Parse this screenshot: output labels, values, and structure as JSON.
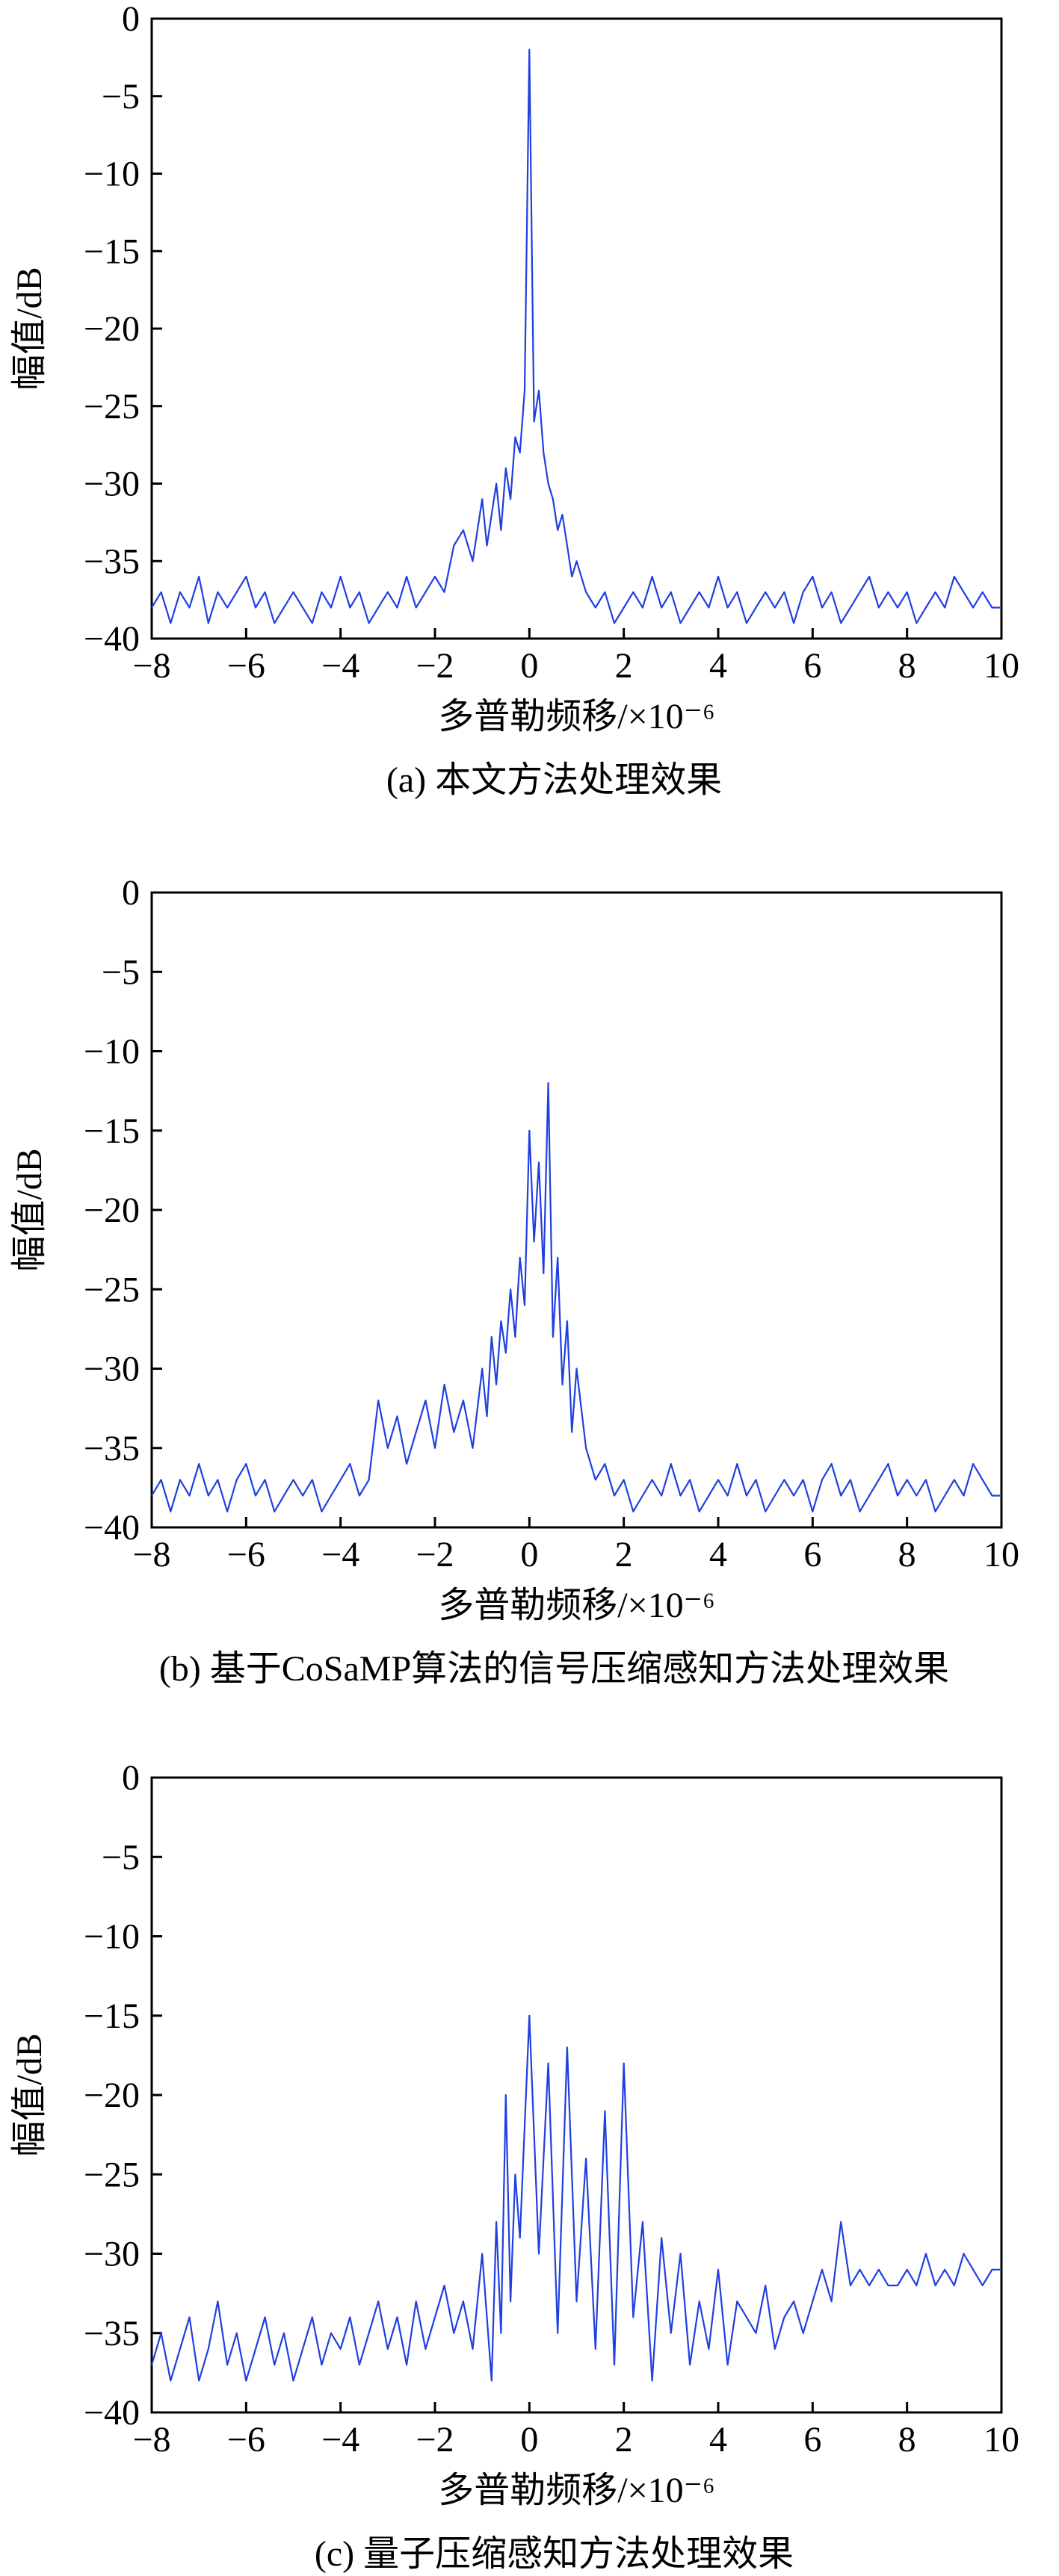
{
  "chart_data": [
    {
      "type": "line",
      "caption": "(a) 本文方法处理效果",
      "xlabel": "多普勒频移/×10⁻⁶",
      "ylabel": "幅值/dB",
      "xlim": [
        -8,
        10
      ],
      "ylim": [
        -40,
        0
      ],
      "xticks": [
        "−8",
        "−6",
        "−4",
        "−2",
        "0",
        "2",
        "4",
        "6",
        "8",
        "10"
      ],
      "yticks": [
        "0",
        "−5",
        "−10",
        "−15",
        "−20",
        "−25",
        "−30",
        "−35",
        "−40"
      ],
      "line_color": "#1f3fe0",
      "series": [
        {
          "x": [
            -8.0,
            -7.8,
            -7.6,
            -7.4,
            -7.2,
            -7.0,
            -6.8,
            -6.6,
            -6.4,
            -6.2,
            -6.0,
            -5.8,
            -5.6,
            -5.4,
            -5.2,
            -5.0,
            -4.8,
            -4.6,
            -4.4,
            -4.2,
            -4.0,
            -3.8,
            -3.6,
            -3.4,
            -3.2,
            -3.0,
            -2.8,
            -2.6,
            -2.4,
            -2.2,
            -2.0,
            -1.8,
            -1.6,
            -1.4,
            -1.2,
            -1.0,
            -0.9,
            -0.8,
            -0.7,
            -0.6,
            -0.5,
            -0.4,
            -0.3,
            -0.2,
            -0.1,
            0.0,
            0.1,
            0.2,
            0.3,
            0.4,
            0.5,
            0.6,
            0.7,
            0.8,
            0.9,
            1.0,
            1.2,
            1.4,
            1.6,
            1.8,
            2.0,
            2.2,
            2.4,
            2.6,
            2.8,
            3.0,
            3.2,
            3.4,
            3.6,
            3.8,
            4.0,
            4.2,
            4.4,
            4.6,
            4.8,
            5.0,
            5.2,
            5.4,
            5.6,
            5.8,
            6.0,
            6.2,
            6.4,
            6.6,
            6.8,
            7.0,
            7.2,
            7.4,
            7.6,
            7.8,
            8.0,
            8.2,
            8.4,
            8.6,
            8.8,
            9.0,
            9.2,
            9.4,
            9.6,
            9.8,
            10.0
          ],
          "y": [
            -38,
            -37,
            -39,
            -37,
            -38,
            -36,
            -39,
            -37,
            -38,
            -37,
            -36,
            -38,
            -37,
            -39,
            -38,
            -37,
            -38,
            -39,
            -37,
            -38,
            -36,
            -38,
            -37,
            -39,
            -38,
            -37,
            -38,
            -36,
            -38,
            -37,
            -36,
            -37,
            -34,
            -33,
            -35,
            -31,
            -34,
            -32,
            -30,
            -33,
            -29,
            -31,
            -27,
            -28,
            -24,
            -2,
            -26,
            -24,
            -28,
            -30,
            -31,
            -33,
            -32,
            -34,
            -36,
            -35,
            -37,
            -38,
            -37,
            -39,
            -38,
            -37,
            -38,
            -36,
            -38,
            -37,
            -39,
            -38,
            -37,
            -38,
            -36,
            -38,
            -37,
            -39,
            -38,
            -37,
            -38,
            -37,
            -39,
            -37,
            -36,
            -38,
            -37,
            -39,
            -38,
            -37,
            -36,
            -38,
            -37,
            -38,
            -37,
            -39,
            -38,
            -37,
            -38,
            -36,
            -37,
            -38,
            -37,
            -38,
            -38
          ]
        }
      ]
    },
    {
      "type": "line",
      "caption": "(b) 基于CoSaMP算法的信号压缩感知方法处理效果",
      "xlabel": "多普勒频移/×10⁻⁶",
      "ylabel": "幅值/dB",
      "xlim": [
        -8,
        10
      ],
      "ylim": [
        -40,
        0
      ],
      "xticks": [
        "−8",
        "−6",
        "−4",
        "−2",
        "0",
        "2",
        "4",
        "6",
        "8",
        "10"
      ],
      "yticks": [
        "0",
        "−5",
        "−10",
        "−15",
        "−20",
        "−25",
        "−30",
        "−35",
        "−40"
      ],
      "line_color": "#1f3fe0",
      "series": [
        {
          "x": [
            -8.0,
            -7.8,
            -7.6,
            -7.4,
            -7.2,
            -7.0,
            -6.8,
            -6.6,
            -6.4,
            -6.2,
            -6.0,
            -5.8,
            -5.6,
            -5.4,
            -5.2,
            -5.0,
            -4.8,
            -4.6,
            -4.4,
            -4.2,
            -4.0,
            -3.8,
            -3.6,
            -3.4,
            -3.2,
            -3.0,
            -2.8,
            -2.6,
            -2.4,
            -2.2,
            -2.0,
            -1.8,
            -1.6,
            -1.4,
            -1.2,
            -1.0,
            -0.9,
            -0.8,
            -0.7,
            -0.6,
            -0.5,
            -0.4,
            -0.3,
            -0.2,
            -0.1,
            0.0,
            0.1,
            0.2,
            0.3,
            0.4,
            0.5,
            0.6,
            0.7,
            0.8,
            0.9,
            1.0,
            1.2,
            1.4,
            1.6,
            1.8,
            2.0,
            2.2,
            2.4,
            2.6,
            2.8,
            3.0,
            3.2,
            3.4,
            3.6,
            3.8,
            4.0,
            4.2,
            4.4,
            4.6,
            4.8,
            5.0,
            5.2,
            5.4,
            5.6,
            5.8,
            6.0,
            6.2,
            6.4,
            6.6,
            6.8,
            7.0,
            7.2,
            7.4,
            7.6,
            7.8,
            8.0,
            8.2,
            8.4,
            8.6,
            8.8,
            9.0,
            9.2,
            9.4,
            9.6,
            9.8,
            10.0
          ],
          "y": [
            -38,
            -37,
            -39,
            -37,
            -38,
            -36,
            -38,
            -37,
            -39,
            -37,
            -36,
            -38,
            -37,
            -39,
            -38,
            -37,
            -38,
            -37,
            -39,
            -38,
            -37,
            -36,
            -38,
            -37,
            -32,
            -35,
            -33,
            -36,
            -34,
            -32,
            -35,
            -31,
            -34,
            -32,
            -35,
            -30,
            -33,
            -28,
            -31,
            -27,
            -29,
            -25,
            -28,
            -23,
            -26,
            -15,
            -22,
            -17,
            -24,
            -12,
            -28,
            -23,
            -31,
            -27,
            -34,
            -30,
            -35,
            -37,
            -36,
            -38,
            -37,
            -39,
            -38,
            -37,
            -38,
            -36,
            -38,
            -37,
            -39,
            -38,
            -37,
            -38,
            -36,
            -38,
            -37,
            -39,
            -38,
            -37,
            -38,
            -37,
            -39,
            -37,
            -36,
            -38,
            -37,
            -39,
            -38,
            -37,
            -36,
            -38,
            -37,
            -38,
            -37,
            -39,
            -38,
            -37,
            -38,
            -36,
            -37,
            -38,
            -38
          ]
        }
      ]
    },
    {
      "type": "line",
      "caption": "(c) 量子压缩感知方法处理效果",
      "xlabel": "多普勒频移/×10⁻⁶",
      "ylabel": "幅值/dB",
      "xlim": [
        -8,
        10
      ],
      "ylim": [
        -40,
        0
      ],
      "xticks": [
        "−8",
        "−6",
        "−4",
        "−2",
        "0",
        "2",
        "4",
        "6",
        "8",
        "10"
      ],
      "yticks": [
        "0",
        "−5",
        "−10",
        "−15",
        "−20",
        "−25",
        "−30",
        "−35",
        "−40"
      ],
      "line_color": "#1f3fe0",
      "series": [
        {
          "x": [
            -8.0,
            -7.8,
            -7.6,
            -7.4,
            -7.2,
            -7.0,
            -6.8,
            -6.6,
            -6.4,
            -6.2,
            -6.0,
            -5.8,
            -5.6,
            -5.4,
            -5.2,
            -5.0,
            -4.8,
            -4.6,
            -4.4,
            -4.2,
            -4.0,
            -3.8,
            -3.6,
            -3.4,
            -3.2,
            -3.0,
            -2.8,
            -2.6,
            -2.4,
            -2.2,
            -2.0,
            -1.8,
            -1.6,
            -1.4,
            -1.2,
            -1.0,
            -0.9,
            -0.8,
            -0.7,
            -0.6,
            -0.5,
            -0.4,
            -0.3,
            -0.2,
            -0.1,
            0.0,
            0.2,
            0.4,
            0.6,
            0.8,
            1.0,
            1.2,
            1.4,
            1.6,
            1.8,
            2.0,
            2.2,
            2.4,
            2.6,
            2.8,
            3.0,
            3.2,
            3.4,
            3.6,
            3.8,
            4.0,
            4.2,
            4.4,
            4.6,
            4.8,
            5.0,
            5.2,
            5.4,
            5.6,
            5.8,
            6.0,
            6.2,
            6.4,
            6.6,
            6.8,
            7.0,
            7.2,
            7.4,
            7.6,
            7.8,
            8.0,
            8.2,
            8.4,
            8.6,
            8.8,
            9.0,
            9.2,
            9.4,
            9.6,
            9.8,
            10.0
          ],
          "y": [
            -37,
            -35,
            -38,
            -36,
            -34,
            -38,
            -36,
            -33,
            -37,
            -35,
            -38,
            -36,
            -34,
            -37,
            -35,
            -38,
            -36,
            -34,
            -37,
            -35,
            -36,
            -34,
            -37,
            -35,
            -33,
            -36,
            -34,
            -37,
            -33,
            -36,
            -34,
            -32,
            -35,
            -33,
            -36,
            -30,
            -34,
            -38,
            -28,
            -35,
            -20,
            -33,
            -25,
            -29,
            -22,
            -15,
            -30,
            -18,
            -35,
            -17,
            -33,
            -24,
            -36,
            -21,
            -37,
            -18,
            -34,
            -28,
            -38,
            -29,
            -35,
            -30,
            -37,
            -33,
            -36,
            -31,
            -37,
            -33,
            -34,
            -35,
            -32,
            -36,
            -34,
            -33,
            -35,
            -33,
            -31,
            -33,
            -28,
            -32,
            -31,
            -32,
            -31,
            -32,
            -32,
            -31,
            -32,
            -30,
            -32,
            -31,
            -32,
            -30,
            -31,
            -32,
            -31,
            -31
          ]
        }
      ]
    }
  ]
}
